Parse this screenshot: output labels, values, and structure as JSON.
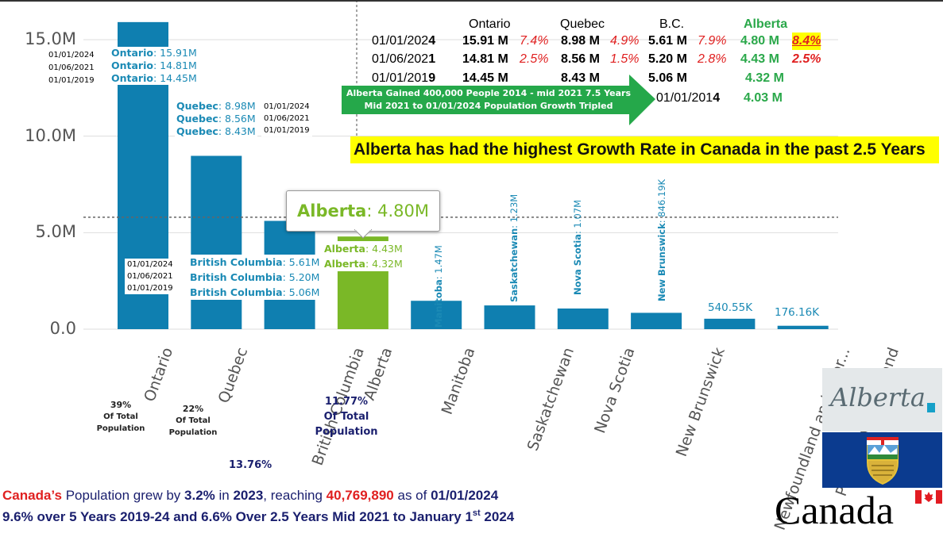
{
  "chart_data": {
    "type": "bar",
    "categories": [
      "Ontario",
      "Quebec",
      "British Columbia",
      "Alberta",
      "Manitoba",
      "Saskatchewan",
      "Nova Scotia",
      "New Brunswick",
      "Newfoundland and Labr...",
      "Prince Edward Island"
    ],
    "values": [
      15.91,
      8.98,
      5.61,
      4.8,
      1.47,
      1.23,
      1.07,
      0.84619,
      0.54055,
      0.17616
    ],
    "value_units": "M",
    "ylim": [
      0,
      16
    ],
    "yticks": [
      "0.0",
      "5.0M",
      "10.0M",
      "15.0M"
    ],
    "ytick_values": [
      0,
      5,
      10,
      15
    ],
    "grid": true,
    "reference_line": 5.8,
    "colors": {
      "bar": "#0f7fb0",
      "highlight": "#7ab827",
      "text_teal": "#1b8ab5"
    }
  },
  "bar_labels": {
    "ontario": [
      "15.91M",
      "14.81M",
      "14.45M"
    ],
    "ontario_name": "Ontario",
    "quebec": [
      "8.98M",
      "8.56M",
      "8.43M"
    ],
    "quebec_name": "Quebec",
    "bc": [
      "5.61M",
      "5.20M",
      "5.06M"
    ],
    "bc_name": "British Columbia",
    "alberta": [
      "4.43M",
      "4.32M"
    ],
    "alberta_name": "Alberta",
    "manitoba": {
      "name": "Manitoba",
      "value": "1.47M"
    },
    "saskatchewan": {
      "name": "Saskatchewan",
      "value": "1.23M"
    },
    "nova_scotia": {
      "name": "Nova Scotia",
      "value": "1.07M"
    },
    "new_brunswick": {
      "name": "New Brunswick",
      "value": "846.19K"
    },
    "newfoundland": "540.55K",
    "pei": "176.16K",
    "dates": [
      "01/01/2024",
      "01/06/2021",
      "01/01/2019"
    ]
  },
  "tooltip": {
    "name": "Alberta",
    "value": "4.80M"
  },
  "shares": {
    "ontario": [
      "39%",
      "Of Total",
      "Population"
    ],
    "quebec": [
      "22%",
      "Of Total",
      "Population"
    ],
    "bc": "13.76%",
    "alberta": [
      "11.77%",
      "Of Total",
      "Population"
    ]
  },
  "table": {
    "headers": [
      "Ontario",
      "Quebec",
      "B.C.",
      "Alberta"
    ],
    "rows": [
      {
        "date_a": "01/01/202",
        "date_b": "4",
        "on": "15.91 M",
        "on_pct": "7.4%",
        "qc": "8.98 M",
        "qc_pct": "4.9%",
        "bc": "5.61 M",
        "bc_pct": "7.9%",
        "ab": "4.80 M",
        "ab_pct": "8.4%"
      },
      {
        "date_a": "01/06/202",
        "date_b": "1",
        "on": "14.81 M",
        "on_pct": "2.5%",
        "qc": "8.56 M",
        "qc_pct": "1.5%",
        "bc": "5.20 M",
        "bc_pct": "2.8%",
        "ab": "4.43 M",
        "ab_pct": "2.5%"
      },
      {
        "date_a": "01/01/201",
        "date_b": "9",
        "on": "14.45 M",
        "qc": "8.43 M",
        "bc": "5.06 M",
        "ab": "4.32 M"
      }
    ],
    "extra": {
      "date_a": "01/01/201",
      "date_b": "4",
      "ab": "4.03 M"
    }
  },
  "arrow_text": [
    "Alberta Gained 400,000 People 2014 - mid 2021 7.5 Years",
    "Mid 2021 to 01/01/2024 Population Growth Tripled"
  ],
  "headline": "Alberta has had the highest Growth Rate in Canada in the past 2.5 Years",
  "footer": {
    "l1_a": "Canada’s",
    "l1_b": " Population grew by ",
    "l1_c": "3.2%",
    "l1_d": " in ",
    "l1_e": "2023",
    "l1_f": ", reaching ",
    "l1_g": "40,769,890",
    "l1_h": " as of ",
    "l1_i": "01/01/2024",
    "l2_a": "9.6% over 5 Years 2019-24 and 6.6% Over 2.5 Years Mid 2021 to January 1",
    "l2_sup": "st",
    "l2_b": " 2024"
  },
  "logos": {
    "alberta_logo": "Alberta",
    "canada_wordmark": "Canada"
  }
}
